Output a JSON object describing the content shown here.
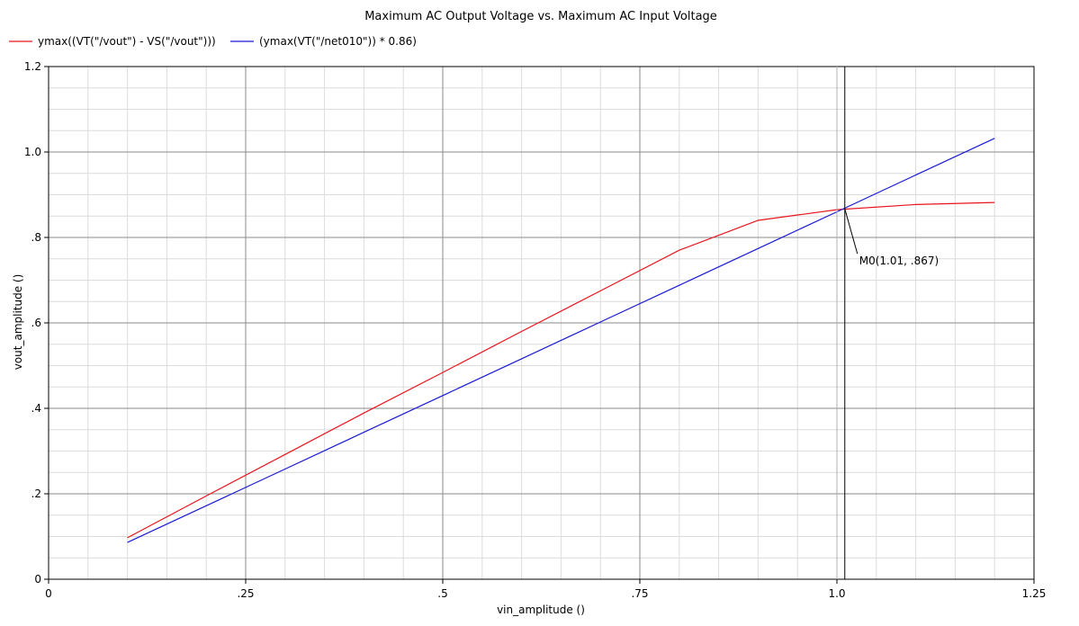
{
  "chart_data": {
    "type": "line",
    "title": "Maximum AC Output Voltage vs. Maximum AC Input Voltage",
    "xlabel": "vin_amplitude ()",
    "ylabel": "vout_amplitude ()",
    "xlim": [
      0,
      1.25
    ],
    "ylim": [
      0,
      1.2
    ],
    "x_ticks": [
      {
        "value": 0,
        "label": "0"
      },
      {
        "value": 0.25,
        "label": ".25"
      },
      {
        "value": 0.5,
        "label": ".5"
      },
      {
        "value": 0.75,
        "label": ".75"
      },
      {
        "value": 1.0,
        "label": "1.0"
      },
      {
        "value": 1.25,
        "label": "1.25"
      }
    ],
    "y_ticks": [
      {
        "value": 0,
        "label": "0"
      },
      {
        "value": 0.2,
        "label": ".2"
      },
      {
        "value": 0.4,
        "label": ".4"
      },
      {
        "value": 0.6,
        "label": ".6"
      },
      {
        "value": 0.8,
        "label": ".8"
      },
      {
        "value": 1.0,
        "label": "1.0"
      },
      {
        "value": 1.2,
        "label": "1.2"
      }
    ],
    "grid": true,
    "legend_position": "top-left",
    "series": [
      {
        "name": "ymax((VT(\"/vout\") - VS(\"/vout\")))",
        "color": "#e8141c",
        "x": [
          0.1,
          0.2,
          0.3,
          0.4,
          0.5,
          0.6,
          0.7,
          0.8,
          0.9,
          1.0,
          1.1,
          1.2
        ],
        "y": [
          0.097,
          0.195,
          0.292,
          0.389,
          0.484,
          0.58,
          0.675,
          0.77,
          0.84,
          0.865,
          0.877,
          0.882
        ]
      },
      {
        "name": "(ymax(VT(\"/net010\")) * 0.86)",
        "color": "#1a1ad4",
        "x": [
          0.1,
          0.2,
          0.3,
          0.4,
          0.5,
          0.6,
          0.7,
          0.8,
          0.9,
          1.0,
          1.1,
          1.2
        ],
        "y": [
          0.086,
          0.172,
          0.258,
          0.344,
          0.43,
          0.516,
          0.602,
          0.688,
          0.774,
          0.86,
          0.946,
          1.032
        ]
      }
    ],
    "marker": {
      "label": "M0(1.01, .867)",
      "x": 1.01,
      "y": 0.867
    }
  }
}
